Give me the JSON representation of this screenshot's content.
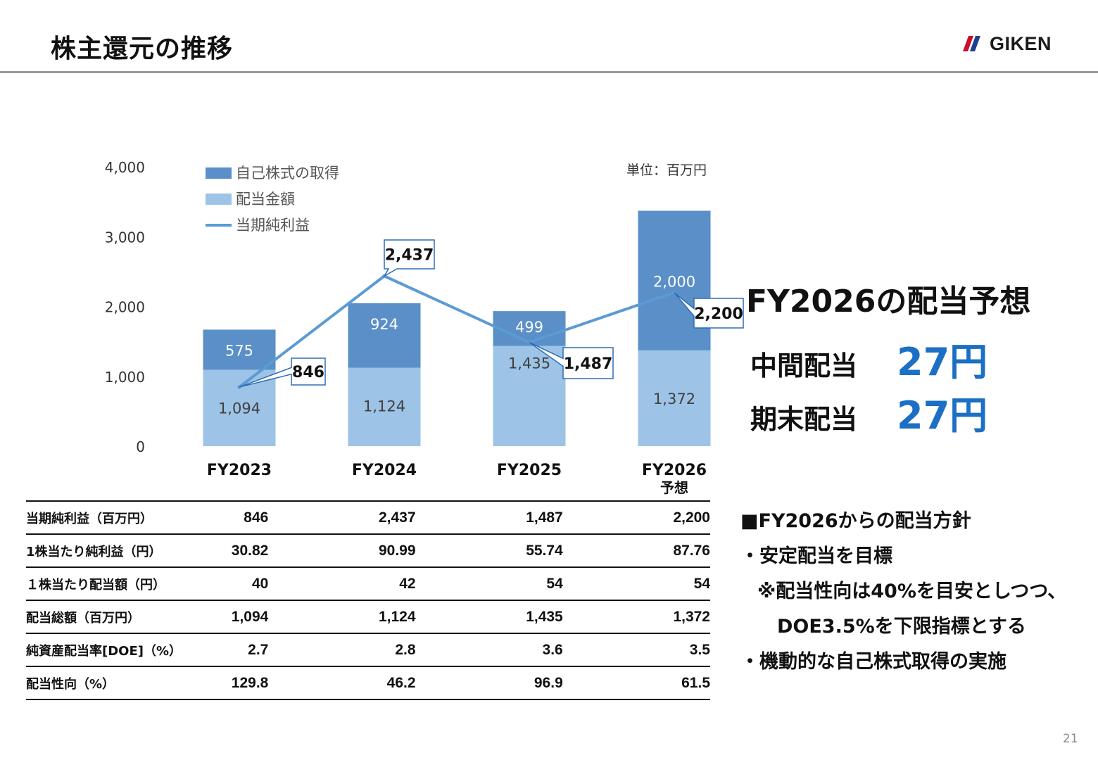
{
  "header": {
    "title": "株主還元の推移",
    "logo_text": "GIKEN",
    "logo_mark_color": "#c8102e"
  },
  "chart_data": {
    "type": "bar",
    "stacked": true,
    "unit_note": "単位：百万円",
    "categories": [
      "FY2023",
      "FY2024",
      "FY2025",
      "FY2026"
    ],
    "category_sublabels": [
      "",
      "",
      "",
      "予想"
    ],
    "ylim": [
      0,
      4000
    ],
    "yticks": [
      "0",
      "1,000",
      "2,000",
      "3,000",
      "4,000"
    ],
    "grid": false,
    "legend_position": "top-left",
    "series": [
      {
        "name": "配当金額",
        "kind": "bar",
        "color": "#9dc3e6",
        "values": [
          1094,
          1124,
          1435,
          1372
        ],
        "labels": [
          "1,094",
          "1,124",
          "1,435",
          "1,372"
        ]
      },
      {
        "name": "自己株式の取得",
        "kind": "bar",
        "color": "#5a8fc8",
        "values": [
          575,
          924,
          499,
          2000
        ],
        "labels": [
          "575",
          "924",
          "499",
          "2,000"
        ]
      },
      {
        "name": "当期純利益",
        "kind": "line",
        "color": "#5b9bd5",
        "values": [
          846,
          2437,
          1487,
          2200
        ],
        "labels": [
          "846",
          "2,437",
          "1,487",
          "2,200"
        ]
      }
    ]
  },
  "summary": {
    "title": "FY2026の配当予想",
    "interim_label": "中間配当",
    "interim_value": "27円",
    "yearend_label": "期末配当",
    "yearend_value": "27円"
  },
  "table": {
    "rows": [
      {
        "label": "当期純利益（百万円）",
        "values": [
          "846",
          "2,437",
          "1,487",
          "2,200"
        ]
      },
      {
        "label": " 1株当たり純利益（円）",
        "values": [
          "30.82",
          "90.99",
          "55.74",
          "87.76"
        ]
      },
      {
        "label": "１株当たり配当額（円）",
        "values": [
          "40",
          "42",
          "54",
          "54"
        ]
      },
      {
        "label": "配当総額（百万円）",
        "values": [
          "1,094",
          "1,124",
          "1,435",
          "1,372"
        ]
      },
      {
        "label": "純資産配当率[DOE]（%）",
        "values": [
          "2.7",
          "2.8",
          "3.6",
          "3.5"
        ]
      },
      {
        "label": "配当性向（%）",
        "values": [
          "129.8",
          "46.2",
          "96.9",
          "61.5"
        ]
      }
    ]
  },
  "policy": {
    "heading": "■FY2026からの配当方針",
    "line1": "・安定配当を目標",
    "line2": "※配当性向は40%を目安としつつ、",
    "line3": "DOE3.5%を下限指標とする",
    "line4": "・機動的な自己株式取得の実施"
  },
  "page_number": "21"
}
